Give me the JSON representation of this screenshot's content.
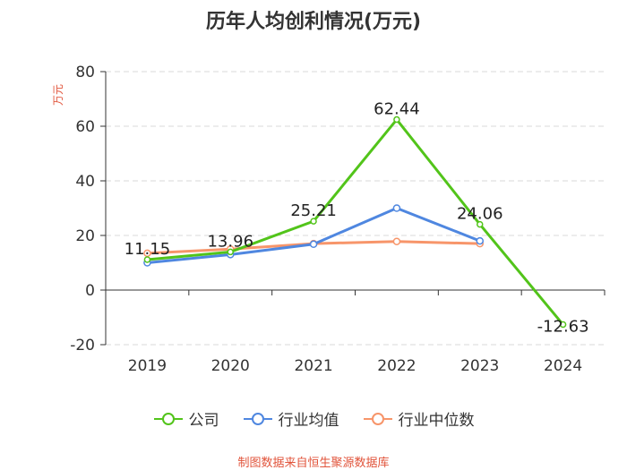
{
  "chart_data": {
    "type": "line",
    "title": "历年人均创利情况(万元)",
    "ylabel": "万元",
    "xlabel": "",
    "categories": [
      "2019",
      "2020",
      "2021",
      "2022",
      "2023",
      "2024"
    ],
    "yticks": [
      80,
      60,
      40,
      20,
      0,
      -20
    ],
    "yticks_label": [
      "80",
      "60",
      "40",
      "20",
      "0",
      "-20"
    ],
    "ylim": [
      -20,
      80
    ],
    "grid": true,
    "legend_position": "bottom",
    "series": [
      {
        "name": "公司",
        "color": "#52c41a",
        "values": [
          11.15,
          13.96,
          25.21,
          62.44,
          24.06,
          -12.63
        ],
        "labels": [
          "11.15",
          "13.96",
          "25.21",
          "62.44",
          "24.06",
          "-12.63"
        ]
      },
      {
        "name": "行业均值",
        "color": "#4f87e0",
        "values": [
          10.0,
          13.0,
          16.8,
          30.0,
          18.0,
          null
        ]
      },
      {
        "name": "行业中位数",
        "color": "#f7956a",
        "values": [
          13.5,
          15.0,
          17.0,
          17.8,
          17.0,
          null
        ]
      }
    ]
  },
  "source": "制图数据来自恒生聚源数据库"
}
